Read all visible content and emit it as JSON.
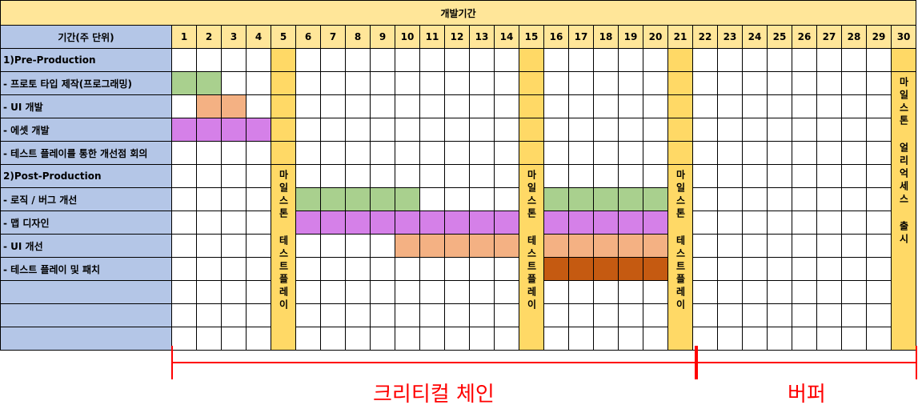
{
  "chart_data": {
    "type": "table",
    "title": "개발기간",
    "label_header": "기간(주 단위)",
    "weeks": [
      1,
      2,
      3,
      4,
      5,
      6,
      7,
      8,
      9,
      10,
      11,
      12,
      13,
      14,
      15,
      16,
      17,
      18,
      19,
      20,
      21,
      22,
      23,
      24,
      25,
      26,
      27,
      28,
      29,
      30
    ],
    "rows": [
      {
        "label": "1)Pre-Production"
      },
      {
        "label": "- 프로토 타입 제작(프로그래밍)",
        "bars": [
          {
            "start": 1,
            "end": 2,
            "color": "#a9d08e"
          }
        ]
      },
      {
        "label": "- UI 개발",
        "bars": [
          {
            "start": 2,
            "end": 3,
            "color": "#f4b183"
          }
        ]
      },
      {
        "label": "- 에셋 개발",
        "bars": [
          {
            "start": 1,
            "end": 4,
            "color": "#d580e8"
          }
        ]
      },
      {
        "label": "- 테스트 플레이를 통한 개선점 회의",
        "bars": [
          {
            "start": 5,
            "end": 5,
            "color": "#bf8f00"
          }
        ]
      },
      {
        "label": "2)Post-Production"
      },
      {
        "label": "- 로직 / 버그 개선",
        "bars": [
          {
            "start": 6,
            "end": 10,
            "color": "#a9d08e"
          },
          {
            "start": 16,
            "end": 20,
            "color": "#a9d08e"
          }
        ]
      },
      {
        "label": "- 맵 디자인",
        "bars": [
          {
            "start": 6,
            "end": 14,
            "color": "#d580e8"
          },
          {
            "start": 16,
            "end": 20,
            "color": "#d580e8"
          }
        ]
      },
      {
        "label": "- UI 개선",
        "bars": [
          {
            "start": 10,
            "end": 14,
            "color": "#f4b183"
          },
          {
            "start": 16,
            "end": 20,
            "color": "#f4b183"
          }
        ]
      },
      {
        "label": "- 테스트 플레이 및 패치",
        "bars": [
          {
            "start": 16,
            "end": 20,
            "color": "#c55a11"
          }
        ]
      },
      {
        "label": ""
      },
      {
        "label": ""
      },
      {
        "label": ""
      }
    ],
    "milestones": [
      {
        "week": 5,
        "text": "마일스톤 테스트플레이",
        "from_row": 5
      },
      {
        "week": 15,
        "text": "마일스톤 테스트플레이",
        "from_row": 5
      },
      {
        "week": 21,
        "text": "마일스톤 테스트플레이",
        "from_row": 5
      },
      {
        "week": 30,
        "text": "마일스톤 얼리억세스 출시",
        "from_row": 1
      }
    ],
    "annotations": [
      {
        "label": "크리티컬 체인",
        "start": 1,
        "end": 21
      },
      {
        "label": "버퍼",
        "start": 22,
        "end": 30
      }
    ]
  },
  "colors": {
    "header_fill": "#ffe699",
    "label_fill": "#b4c6e7",
    "milestone_fill": "#ffd966",
    "annotation": "#ff0000"
  }
}
